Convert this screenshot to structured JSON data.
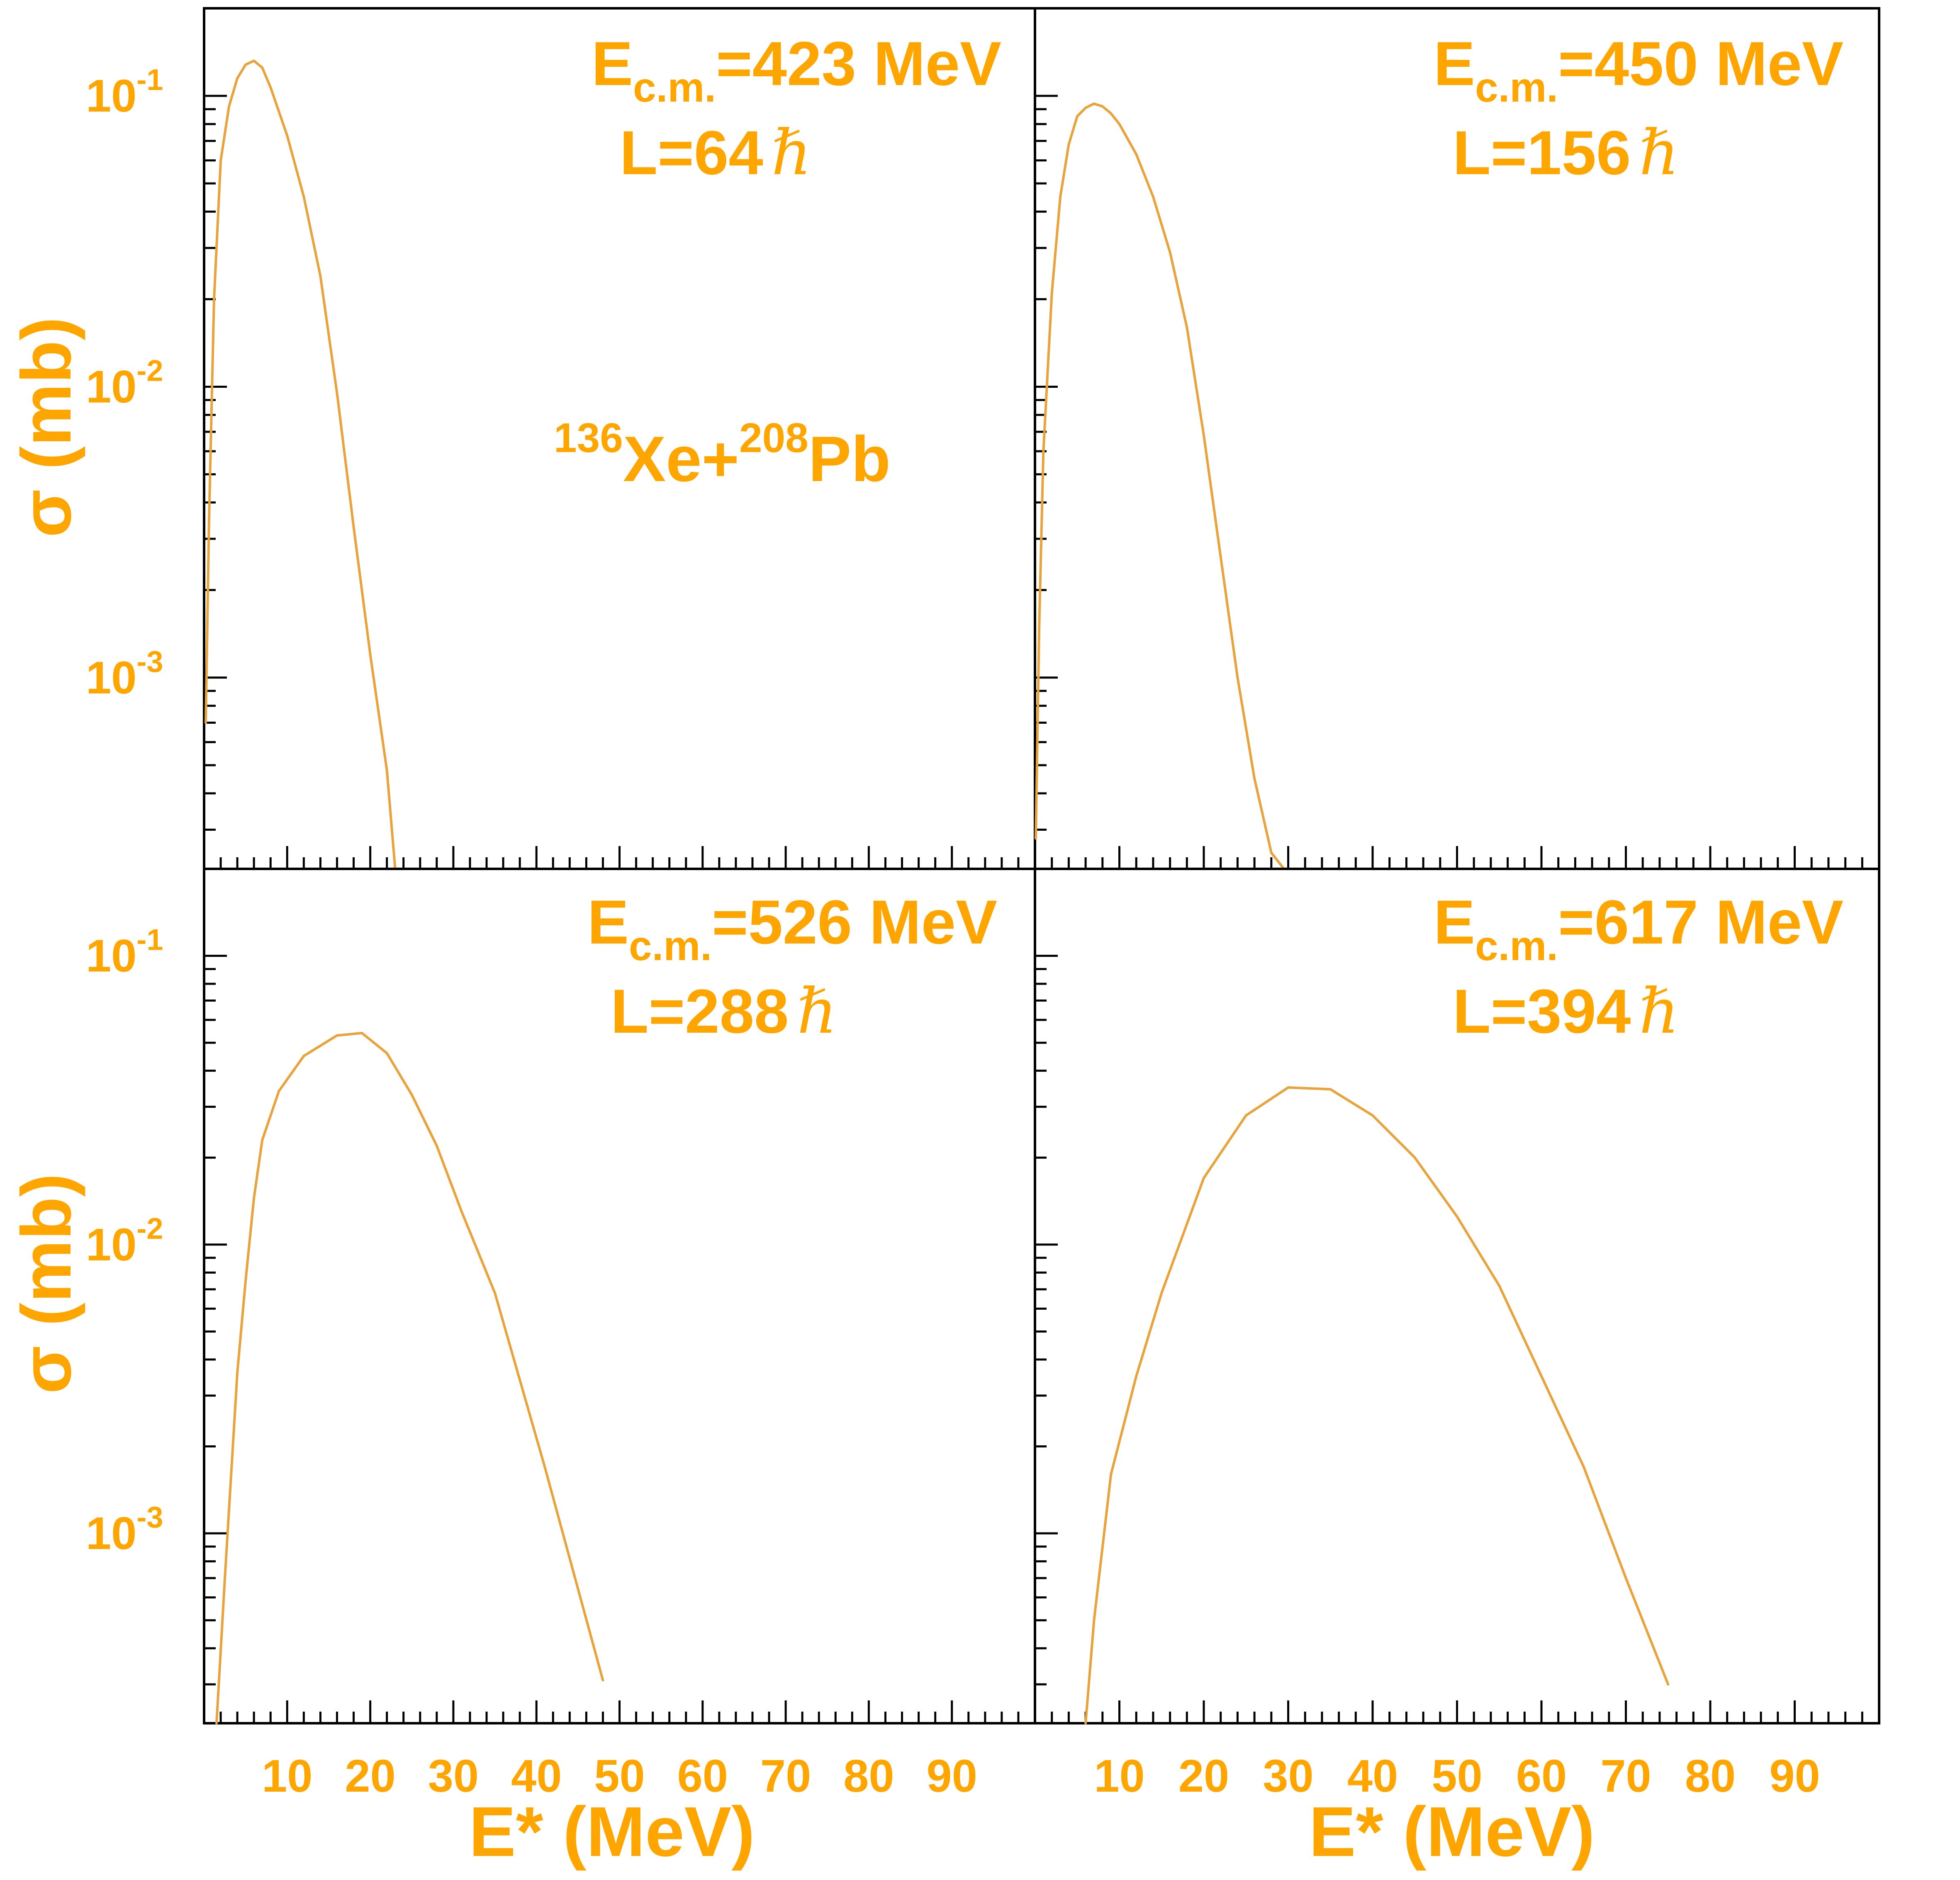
{
  "figure": {
    "ylabel": "σ (mb)",
    "xlabel": "E* (MeV)",
    "reaction": {
      "a_mass": "136",
      "a_elem": "Xe+",
      "b_mass": "208",
      "b_elem": "Pb"
    },
    "colors": {
      "series": "#E8A33C",
      "text": "#FFA500",
      "axis": "#000000"
    },
    "x_ticks": [
      "10",
      "20",
      "30",
      "40",
      "50",
      "60",
      "70",
      "80",
      "90"
    ],
    "y_ticks": [
      {
        "base": "10",
        "exp": "-1",
        "value": 0.1
      },
      {
        "base": "10",
        "exp": "-2",
        "value": 0.01
      },
      {
        "base": "10",
        "exp": "-3",
        "value": 0.001
      }
    ]
  },
  "chart_data": [
    {
      "type": "line",
      "panel": "top-left",
      "energy_label": {
        "prefix": "E",
        "sub": "c.m.",
        "value": "=423 MeV"
      },
      "l_label": {
        "value": "L=64",
        "unit": "ℏ"
      },
      "xlim": [
        0,
        100
      ],
      "ylim": [
        0.00022,
        0.2
      ],
      "yscale": "log",
      "x": [
        0.2,
        0.6,
        1.2,
        2,
        3,
        4,
        5,
        6,
        7,
        8,
        10,
        12,
        14,
        16,
        18,
        20,
        22,
        23
      ],
      "y": [
        0.0007,
        0.0035,
        0.02,
        0.06,
        0.092,
        0.115,
        0.128,
        0.132,
        0.125,
        0.107,
        0.073,
        0.045,
        0.024,
        0.0095,
        0.0033,
        0.0012,
        0.00048,
        0.00022
      ]
    },
    {
      "type": "line",
      "panel": "top-right",
      "energy_label": {
        "prefix": "E",
        "sub": "c.m.",
        "value": "=450 MeV"
      },
      "l_label": {
        "value": "L=156",
        "unit": "ℏ"
      },
      "xlim": [
        0,
        100
      ],
      "ylim": [
        0.00022,
        0.2
      ],
      "yscale": "log",
      "x": [
        0.1,
        0.5,
        1,
        2,
        3,
        4,
        5,
        6,
        7,
        8,
        9,
        10,
        12,
        14,
        16,
        18,
        20,
        22,
        24,
        26,
        28,
        29.5
      ],
      "y": [
        0.00028,
        0.0015,
        0.006,
        0.021,
        0.045,
        0.068,
        0.085,
        0.091,
        0.094,
        0.092,
        0.087,
        0.08,
        0.063,
        0.045,
        0.029,
        0.016,
        0.0068,
        0.0026,
        0.001,
        0.00045,
        0.00025,
        0.00022
      ]
    },
    {
      "type": "line",
      "panel": "bottom-left",
      "energy_label": {
        "prefix": "E",
        "sub": "c.m.",
        "value": "=526 MeV"
      },
      "l_label": {
        "value": "L=288",
        "unit": "ℏ"
      },
      "xlim": [
        0,
        100
      ],
      "ylim": [
        0.00022,
        0.2
      ],
      "yscale": "log",
      "x": [
        1.5,
        2.5,
        4,
        5,
        6,
        7,
        9,
        12,
        16,
        19,
        22,
        25,
        28,
        31,
        35,
        41,
        48
      ],
      "y": [
        0.00022,
        0.0007,
        0.0036,
        0.0075,
        0.0145,
        0.023,
        0.034,
        0.045,
        0.053,
        0.054,
        0.046,
        0.033,
        0.022,
        0.013,
        0.0068,
        0.0017,
        0.00031
      ]
    },
    {
      "type": "line",
      "panel": "bottom-right",
      "energy_label": {
        "prefix": "E",
        "sub": "c.m.",
        "value": "=617 MeV"
      },
      "l_label": {
        "value": "L=394",
        "unit": "ℏ"
      },
      "xlim": [
        0,
        100
      ],
      "ylim": [
        0.00022,
        0.2
      ],
      "yscale": "log",
      "x": [
        6,
        7,
        9,
        12,
        15,
        20,
        25,
        30,
        35,
        40,
        45,
        50,
        55,
        60,
        65,
        70,
        75
      ],
      "y": [
        0.00022,
        0.0005,
        0.0016,
        0.0035,
        0.0068,
        0.017,
        0.028,
        0.035,
        0.0345,
        0.028,
        0.02,
        0.0125,
        0.0072,
        0.0035,
        0.0017,
        0.0007,
        0.0003
      ]
    }
  ]
}
